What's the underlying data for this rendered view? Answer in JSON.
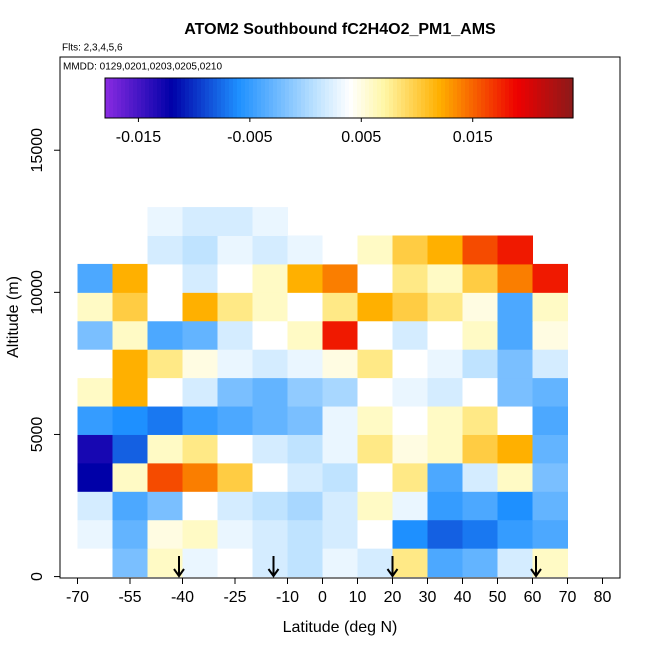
{
  "chart_data": {
    "type": "heatmap",
    "title": "ATOM2 Southbound fC2H4O2_PM1_AMS",
    "subtitle": "Flts: 2,3,4,5,6",
    "annotation": "MMDD: 0129,0201,0203,0205,0210",
    "xlabel": "Latitude (deg N)",
    "ylabel": "Altitude (m)",
    "xlim": [
      -75,
      85
    ],
    "ylim": [
      -50,
      18280
    ],
    "xticks": [
      -70,
      -55,
      -40,
      -25,
      -10,
      0,
      10,
      20,
      30,
      40,
      50,
      60,
      70,
      80
    ],
    "yticks": [
      0,
      5000,
      10000,
      15000
    ],
    "x_edges": [
      -70,
      -60,
      -50,
      -40,
      -30,
      -20,
      -10,
      0,
      10,
      20,
      30,
      40,
      50,
      60,
      70
    ],
    "y_edges": [
      0,
      1000,
      2000,
      3000,
      4000,
      5000,
      6000,
      7000,
      8000,
      9000,
      10000,
      11000,
      12000,
      13000
    ],
    "z": [
      [
        0.004,
        -0.002,
        0.006,
        0.003,
        0.004,
        0.002,
        0.001,
        0.003,
        0.002,
        0.008,
        -0.004,
        -0.003,
        0.002,
        0.006
      ],
      [
        0.003,
        -0.003,
        0.005,
        0.006,
        0.003,
        0.002,
        0.001,
        0.002,
        0.004,
        -0.006,
        -0.008,
        -0.007,
        -0.005,
        -0.004
      ],
      [
        0.002,
        -0.004,
        -0.002,
        0.004,
        0.002,
        0.001,
        0.0,
        0.002,
        0.006,
        0.003,
        -0.005,
        -0.004,
        -0.006,
        -0.003
      ],
      [
        -0.012,
        0.006,
        0.016,
        0.014,
        0.01,
        0.004,
        0.002,
        0.001,
        0.004,
        0.008,
        -0.004,
        0.002,
        0.006,
        -0.002
      ],
      [
        -0.013,
        -0.008,
        0.006,
        0.008,
        0.004,
        0.002,
        0.001,
        0.003,
        0.008,
        0.005,
        0.006,
        0.01,
        0.012,
        -0.003
      ],
      [
        -0.005,
        -0.006,
        -0.007,
        -0.005,
        -0.004,
        -0.003,
        -0.002,
        0.003,
        0.006,
        0.004,
        0.006,
        0.008,
        0.004,
        -0.004
      ],
      [
        0.006,
        0.012,
        0.004,
        0.002,
        -0.002,
        -0.003,
        -0.001,
        0.0,
        0.004,
        0.003,
        0.002,
        0.004,
        -0.002,
        -0.003
      ],
      [
        0.004,
        0.012,
        0.008,
        0.005,
        0.003,
        0.002,
        0.003,
        0.005,
        0.008,
        0.004,
        0.003,
        0.001,
        -0.002,
        0.002
      ],
      [
        -0.002,
        0.006,
        -0.004,
        -0.003,
        0.002,
        0.004,
        0.006,
        0.018,
        0.004,
        0.002,
        0.004,
        0.006,
        -0.004,
        0.005
      ],
      [
        0.006,
        0.01,
        0.004,
        0.012,
        0.008,
        0.006,
        0.004,
        0.008,
        0.012,
        0.01,
        0.008,
        0.005,
        -0.004,
        0.006
      ],
      [
        -0.004,
        0.012,
        0.004,
        0.002,
        0.004,
        0.006,
        0.012,
        0.014,
        0.004,
        0.008,
        0.006,
        0.01,
        0.014,
        0.018
      ],
      [
        null,
        null,
        0.002,
        0.001,
        0.003,
        0.002,
        0.003,
        0.004,
        0.006,
        0.01,
        0.012,
        0.016,
        0.018,
        null
      ],
      [
        null,
        0.004,
        0.003,
        0.002,
        0.002,
        0.003,
        null,
        null,
        null,
        null,
        null,
        null,
        null,
        null
      ]
    ],
    "colorbar_lim": [
      -0.018,
      0.024
    ],
    "colorbar_ticks": [
      -0.015,
      -0.005,
      0.005,
      0.015
    ],
    "colorscale": [
      [
        -0.018,
        "#8a2be2"
      ],
      [
        -0.012,
        "#0000a8"
      ],
      [
        -0.006,
        "#1e90ff"
      ],
      [
        0.001,
        "#bfe3ff"
      ],
      [
        0.004,
        "#ffffff"
      ],
      [
        0.007,
        "#fff7a8"
      ],
      [
        0.012,
        "#ffb000"
      ],
      [
        0.019,
        "#ee0000"
      ],
      [
        0.024,
        "#8b1a1a"
      ]
    ],
    "arrows": [
      -41,
      -14,
      20,
      61
    ]
  }
}
